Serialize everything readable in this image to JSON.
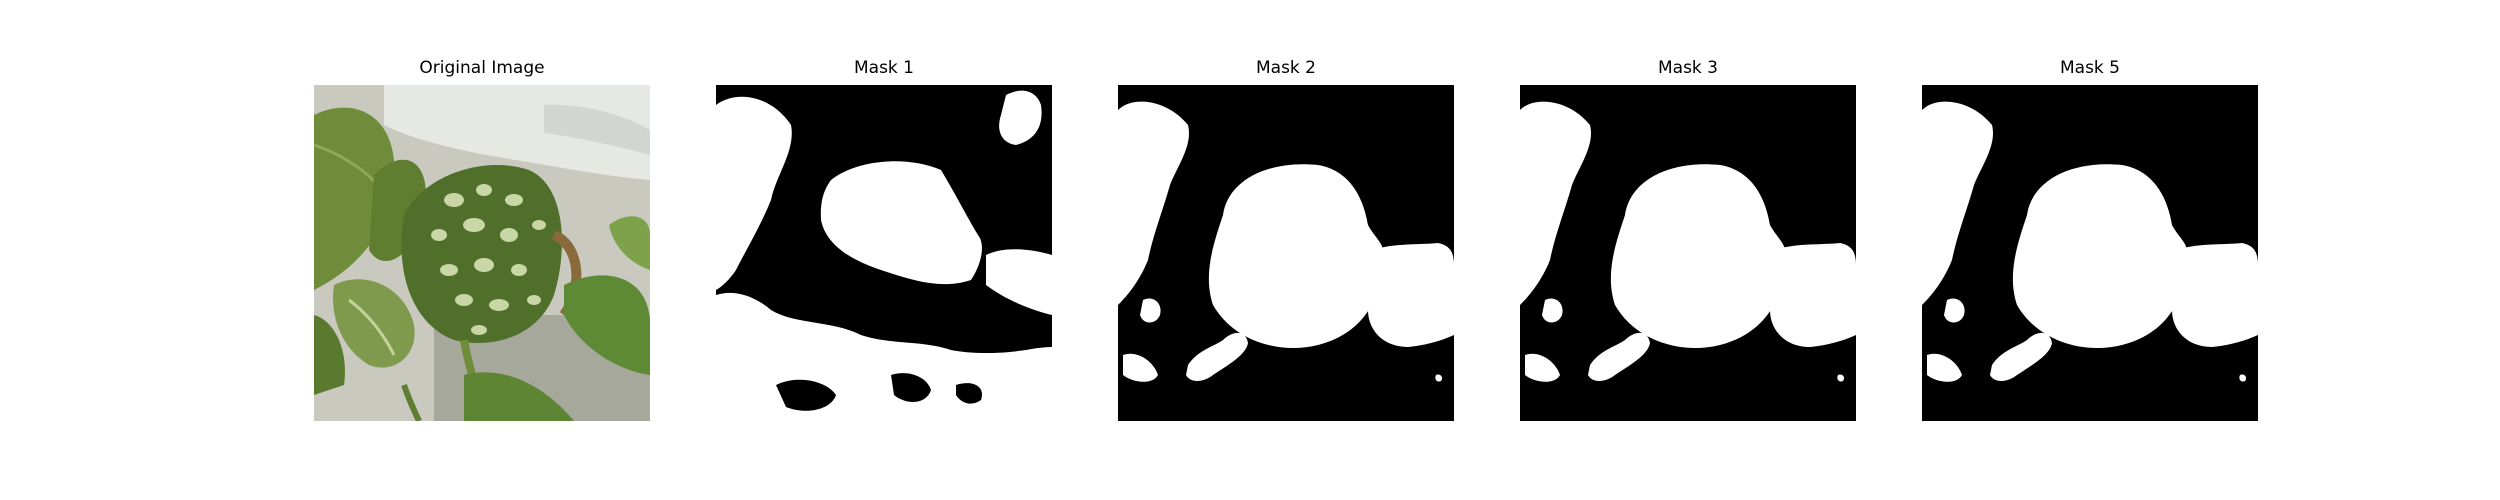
{
  "figure": {
    "panels": [
      {
        "id": "original",
        "title": "Original Image",
        "kind": "photo"
      },
      {
        "id": "mask1",
        "title": "Mask 1",
        "kind": "mask",
        "variant": "mask1"
      },
      {
        "id": "mask2",
        "title": "Mask 2",
        "kind": "mask",
        "variant": "mask2"
      },
      {
        "id": "mask3",
        "title": "Mask 3",
        "kind": "mask",
        "variant": "mask3"
      },
      {
        "id": "mask5",
        "title": "Mask 5",
        "kind": "mask",
        "variant": "mask5"
      }
    ],
    "colors": {
      "background": "#ffffff",
      "mask_background": "#000000",
      "mask_foreground": "#ffffff",
      "leaf_green": "#6f8f3d",
      "leaf_dark": "#4f6f2a",
      "leaf_light": "#b9c98a",
      "pot_white": "#e8eae6"
    }
  }
}
